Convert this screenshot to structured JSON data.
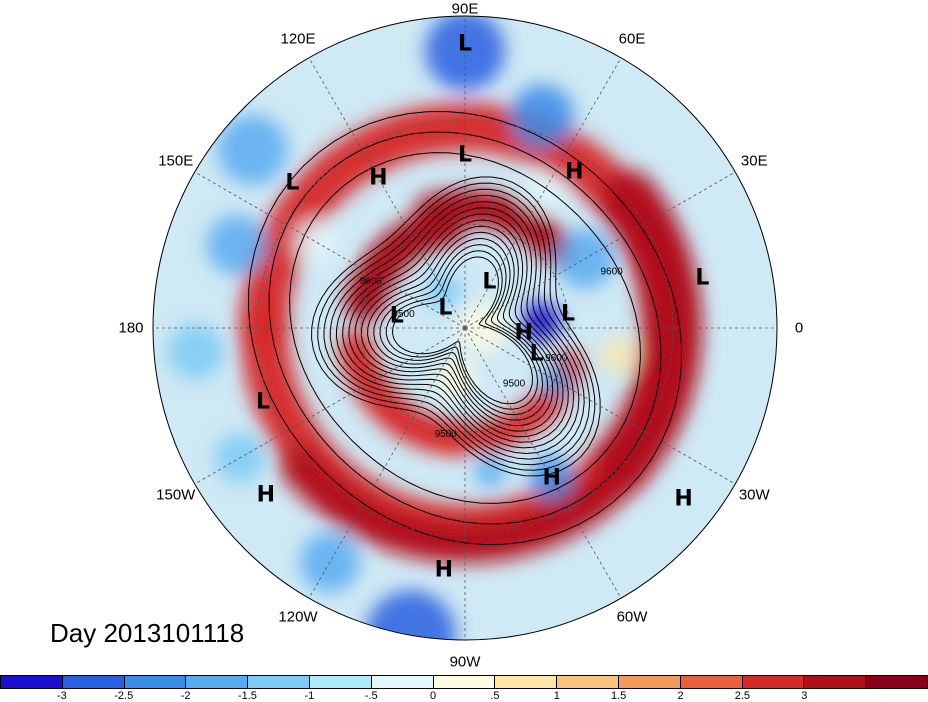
{
  "title": "Day 2013101118",
  "longitude_labels": [
    {
      "text": "90E",
      "lon": 90
    },
    {
      "text": "60E",
      "lon": 60
    },
    {
      "text": "30E",
      "lon": 30
    },
    {
      "text": "0",
      "lon": 0
    },
    {
      "text": "30W",
      "lon": -30
    },
    {
      "text": "60W",
      "lon": -60
    },
    {
      "text": "90W",
      "lon": -90
    },
    {
      "text": "120W",
      "lon": -120
    },
    {
      "text": "150W",
      "lon": -150
    },
    {
      "text": "180",
      "lon": 180
    },
    {
      "text": "150E",
      "lon": 150
    },
    {
      "text": "120E",
      "lon": 120
    }
  ],
  "pressure_centers": [
    {
      "label": "L",
      "lon": 90,
      "lat": 8
    },
    {
      "label": "L",
      "lon": 90,
      "lat": 40
    },
    {
      "label": "H",
      "lon": 55,
      "lat": 35
    },
    {
      "label": "H",
      "lon": 120,
      "lat": 40
    },
    {
      "label": "L",
      "lon": 140,
      "lat": 25
    },
    {
      "label": "L",
      "lon": 12,
      "lat": 20
    },
    {
      "label": "L",
      "lon": 62,
      "lat": 75
    },
    {
      "label": "L",
      "lon": 8,
      "lat": 60
    },
    {
      "label": "H",
      "lon": -5,
      "lat": 73
    },
    {
      "label": "L",
      "lon": 170,
      "lat": 70
    },
    {
      "label": "L",
      "lon": 135,
      "lat": 82
    },
    {
      "label": "L",
      "lon": -20,
      "lat": 68
    },
    {
      "label": "L",
      "lon": -160,
      "lat": 28
    },
    {
      "label": "H",
      "lon": -140,
      "lat": 15
    },
    {
      "label": "H",
      "lon": -60,
      "lat": 40
    },
    {
      "label": "H",
      "lon": -38,
      "lat": 10
    },
    {
      "label": "H",
      "lon": -95,
      "lat": 20
    }
  ],
  "contour_label": "9600",
  "contour_label_alt": "9500",
  "colorbar": {
    "colors": [
      "#1a0fd0",
      "#2a5fe0",
      "#3a8be8",
      "#5aaaf0",
      "#7ccaf5",
      "#aee8fb",
      "#e4f8fc",
      "#fffbe0",
      "#fde6a8",
      "#f9c27e",
      "#f39a5c",
      "#e8603f",
      "#d62a2a",
      "#b0101c",
      "#8a0018"
    ],
    "ticks": [
      "-3",
      "-2.5",
      "-2",
      "-1.5",
      "-1",
      "-.5",
      "0",
      ".5",
      "1",
      "1.5",
      "2",
      "2.5",
      "3"
    ]
  },
  "colors": {
    "contour": "#000000",
    "land_outline": "#222222",
    "grid": "#555555"
  }
}
